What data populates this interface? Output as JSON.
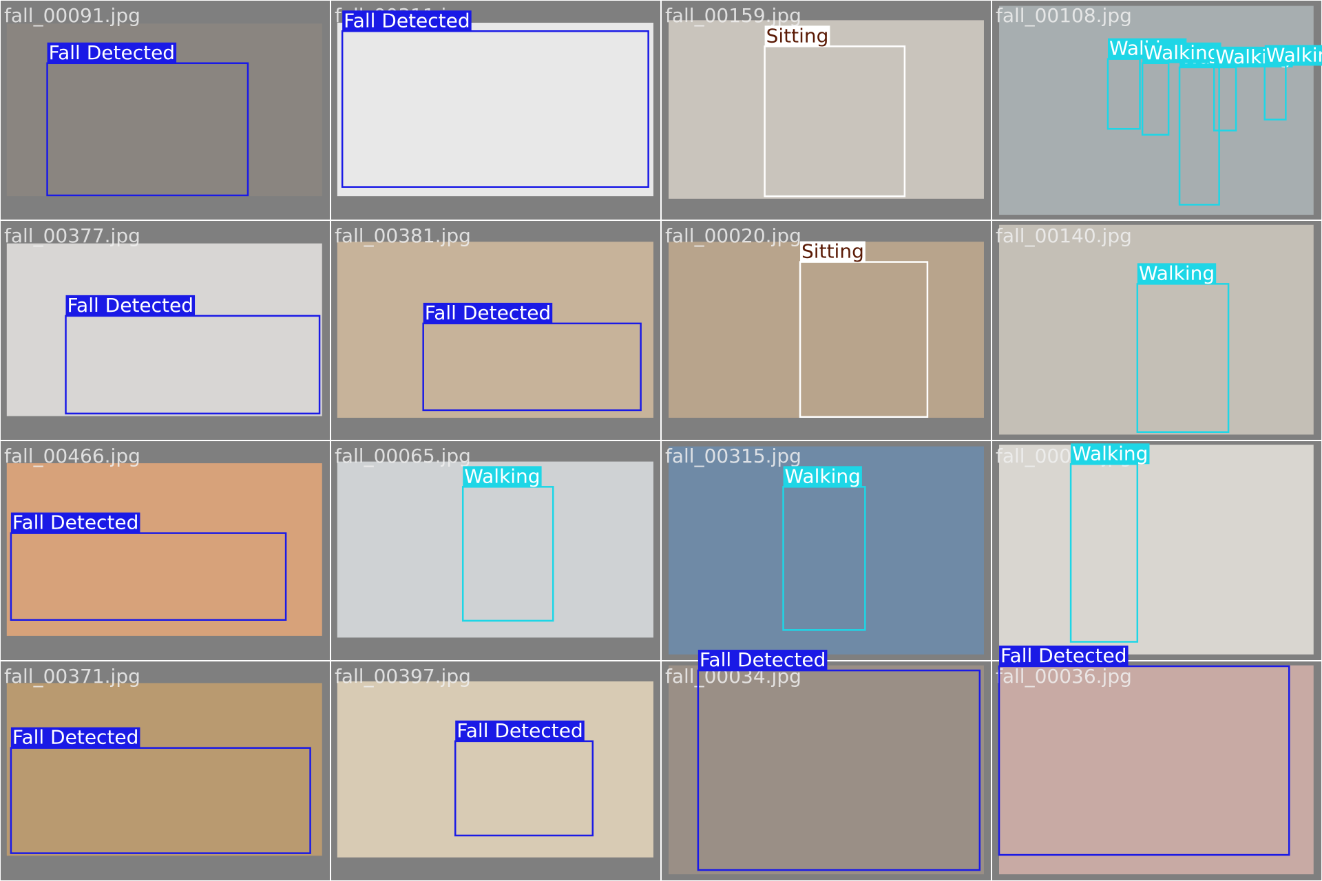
{
  "tiles": [
    {
      "filename": "fall_00091.jpg",
      "detections": [
        {
          "label": "Fall Detected",
          "color": "#1a1ae6",
          "text_color": "#ffffff"
        }
      ]
    },
    {
      "filename": "fall_00311.jpg",
      "detections": [
        {
          "label": "Fall Detected",
          "color": "#1a1ae6",
          "text_color": "#ffffff"
        }
      ]
    },
    {
      "filename": "fall_00159.jpg",
      "detections": [
        {
          "label": "Sitting",
          "color": "#ffffff",
          "text_color": "#5a1a05"
        }
      ]
    },
    {
      "filename": "fall_00108.jpg",
      "detections": [
        {
          "label": "Walking",
          "color": "#1ed6e6",
          "text_color": "#ffffff"
        },
        {
          "label": "Walking",
          "color": "#1ed6e6",
          "text_color": "#ffffff"
        },
        {
          "label": "Walking",
          "color": "#1ed6e6",
          "text_color": "#ffffff"
        },
        {
          "label": "Walking",
          "color": "#1ed6e6",
          "text_color": "#ffffff"
        },
        {
          "label": "Walking",
          "color": "#1ed6e6",
          "text_color": "#ffffff"
        }
      ]
    },
    {
      "filename": "fall_00377.jpg",
      "detections": [
        {
          "label": "Fall Detected",
          "color": "#1a1ae6",
          "text_color": "#ffffff"
        }
      ]
    },
    {
      "filename": "fall_00381.jpg",
      "detections": [
        {
          "label": "Fall Detected",
          "color": "#1a1ae6",
          "text_color": "#ffffff"
        }
      ]
    },
    {
      "filename": "fall_00020.jpg",
      "detections": [
        {
          "label": "Sitting",
          "color": "#ffffff",
          "text_color": "#5a1a05"
        }
      ]
    },
    {
      "filename": "fall_00140.jpg",
      "detections": [
        {
          "label": "Walking",
          "color": "#1ed6e6",
          "text_color": "#ffffff"
        }
      ]
    },
    {
      "filename": "fall_00466.jpg",
      "detections": [
        {
          "label": "Fall Detected",
          "color": "#1a1ae6",
          "text_color": "#ffffff"
        }
      ]
    },
    {
      "filename": "fall_00065.jpg",
      "detections": [
        {
          "label": "Walking",
          "color": "#1ed6e6",
          "text_color": "#ffffff"
        }
      ]
    },
    {
      "filename": "fall_00315.jpg",
      "detections": [
        {
          "label": "Walking",
          "color": "#1ed6e6",
          "text_color": "#ffffff"
        }
      ]
    },
    {
      "filename": "fall_00046.jpg",
      "detections": [
        {
          "label": "Walking",
          "color": "#1ed6e6",
          "text_color": "#ffffff"
        }
      ]
    },
    {
      "filename": "fall_00371.jpg",
      "detections": [
        {
          "label": "Fall Detected",
          "color": "#1a1ae6",
          "text_color": "#ffffff"
        }
      ]
    },
    {
      "filename": "fall_00397.jpg",
      "detections": [
        {
          "label": "Fall Detected",
          "color": "#1a1ae6",
          "text_color": "#ffffff"
        }
      ]
    },
    {
      "filename": "fall_00034.jpg",
      "detections": [
        {
          "label": "Fall Detected",
          "color": "#1a1ae6",
          "text_color": "#ffffff"
        }
      ]
    },
    {
      "filename": "fall_00036.jpg",
      "detections": [
        {
          "label": "Fall Detected",
          "color": "#1a1ae6",
          "text_color": "#ffffff"
        }
      ]
    }
  ]
}
